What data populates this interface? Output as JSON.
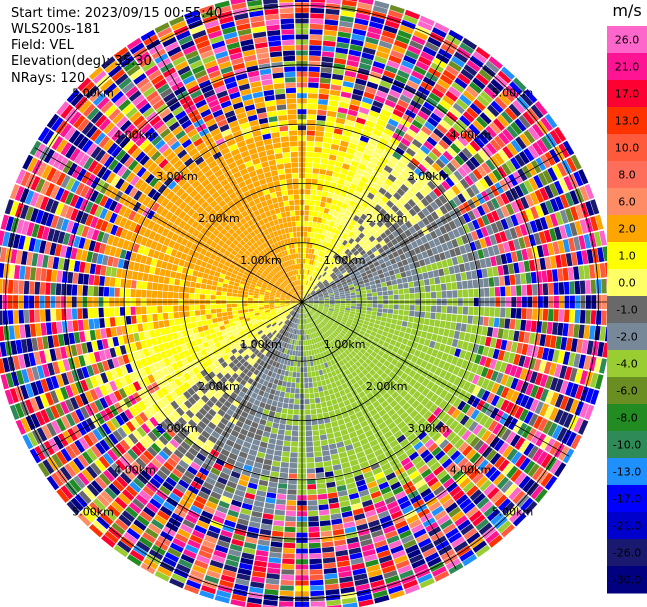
{
  "header": {
    "start_time": "Start time: 2023/09/15 00:55:40",
    "site": "WLS200s-181",
    "field": "Field: VEL",
    "elevation": "Elevation(deg): 35.30",
    "nrays": "NRays: 120"
  },
  "chart_data": {
    "type": "polar-ppi",
    "field": "VEL",
    "units": "m/s",
    "nrays": 120,
    "max_range_km": 5.2,
    "range_rings_km": [
      1,
      2,
      3,
      4,
      5
    ],
    "ring_labels": [
      "1.00km",
      "2.00km",
      "3.00km",
      "4.00km",
      "5.00km"
    ],
    "grid": true,
    "colorbar": {
      "title": "m/s",
      "ticks": [
        "26.0",
        "21.0",
        "17.0",
        "13.0",
        "10.0",
        "8.0",
        "6.0",
        "2.0",
        "1.0",
        "0.0",
        "-1.0",
        "-2.0",
        "-4.0",
        "-6.0",
        "-8.0",
        "-10.0",
        "-13.0",
        "-17.0",
        "-21.0",
        "-26.0",
        "-30.0"
      ],
      "bands": [
        {
          "from": 26,
          "to": 30,
          "color": "#ff66cc"
        },
        {
          "from": 21,
          "to": 26,
          "color": "#ff1493"
        },
        {
          "from": 17,
          "to": 21,
          "color": "#ff0033"
        },
        {
          "from": 13,
          "to": 17,
          "color": "#ff3300"
        },
        {
          "from": 10,
          "to": 13,
          "color": "#ff5a3c"
        },
        {
          "from": 8,
          "to": 10,
          "color": "#ff6e5a"
        },
        {
          "from": 6,
          "to": 8,
          "color": "#ff8c64"
        },
        {
          "from": 2,
          "to": 6,
          "color": "#ffa500"
        },
        {
          "from": 1,
          "to": 2,
          "color": "#ffff00"
        },
        {
          "from": 0,
          "to": 1,
          "color": "#ffff66"
        },
        {
          "from": -1,
          "to": 0,
          "color": "#696969"
        },
        {
          "from": -2,
          "to": -1,
          "color": "#778899"
        },
        {
          "from": -4,
          "to": -2,
          "color": "#9acd32"
        },
        {
          "from": -6,
          "to": -4,
          "color": "#6b8e23"
        },
        {
          "from": -8,
          "to": -6,
          "color": "#228b22"
        },
        {
          "from": -10,
          "to": -8,
          "color": "#2e8b57"
        },
        {
          "from": -13,
          "to": -10,
          "color": "#1e90ff"
        },
        {
          "from": -17,
          "to": -13,
          "color": "#0000ff"
        },
        {
          "from": -21,
          "to": -17,
          "color": "#0000cd"
        },
        {
          "from": -26,
          "to": -21,
          "color": "#191970"
        },
        {
          "from": -30,
          "to": -26,
          "color": "#000080"
        }
      ]
    },
    "wind_field": {
      "toward_azimuth_deg": 135,
      "speed_ms": 3.0,
      "noise_beyond_km": 3.3
    }
  }
}
